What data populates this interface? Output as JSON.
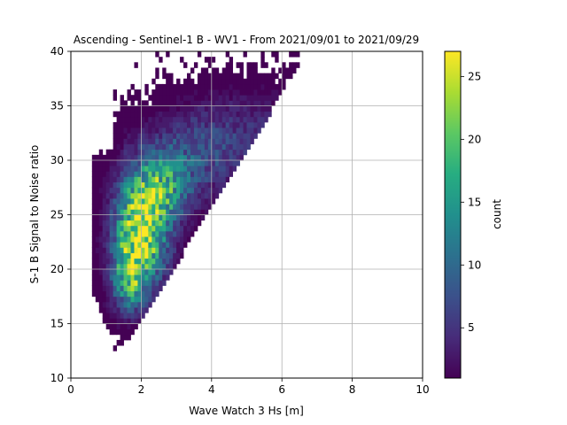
{
  "chart_data": {
    "type": "heatmap",
    "title": "Ascending - Sentinel-1 B - WV1 - From 2021/09/01 to 2021/09/29",
    "xlabel": "Wave Watch 3 Hs [m]",
    "ylabel": "S-1 B Signal to Noise ratio",
    "xlim": [
      0,
      10
    ],
    "ylim": [
      10,
      40
    ],
    "xticks": [
      "0",
      "2",
      "4",
      "6",
      "8",
      "10"
    ],
    "yticks": [
      "10",
      "15",
      "20",
      "25",
      "30",
      "35",
      "40"
    ],
    "grid": true,
    "colormap": "viridis",
    "colorbar": {
      "label": "count",
      "min": 1,
      "max": 27,
      "ticks": [
        "5",
        "10",
        "15",
        "20",
        "25"
      ]
    },
    "density_clusters": [
      {
        "x": 2.0,
        "y": 23.5,
        "sx": 0.5,
        "sy": 3.2,
        "peak": 26
      },
      {
        "x": 1.65,
        "y": 19.0,
        "sx": 0.35,
        "sy": 2.0,
        "peak": 14
      },
      {
        "x": 2.6,
        "y": 27.5,
        "sx": 0.6,
        "sy": 2.2,
        "peak": 12
      },
      {
        "x": 3.6,
        "y": 30.5,
        "sx": 1.1,
        "sy": 2.6,
        "peak": 6
      },
      {
        "x": 5.2,
        "y": 33.0,
        "sx": 1.4,
        "sy": 2.6,
        "peak": 3
      }
    ]
  }
}
